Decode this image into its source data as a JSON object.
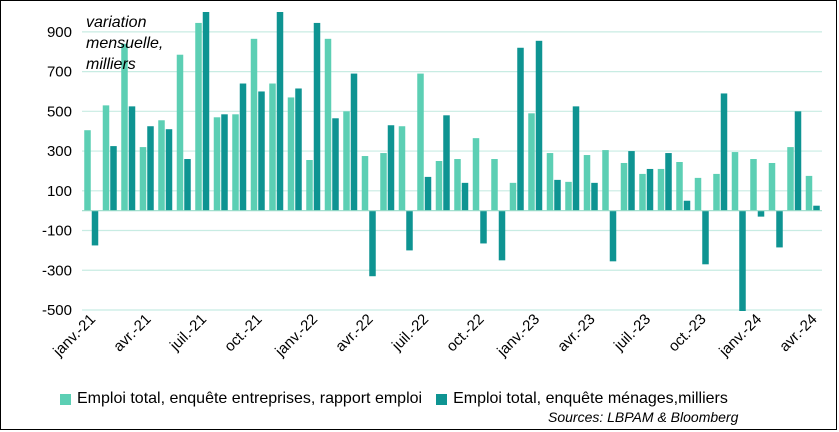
{
  "chart_data": {
    "type": "bar",
    "ylabel": "variation\nmensuelle,\nmilliers",
    "ylim": [
      -500,
      1000
    ],
    "yticks": [
      900,
      700,
      500,
      300,
      100,
      -100,
      -300,
      -500
    ],
    "ytick_labels": [
      "900",
      "700",
      "500",
      "300",
      "100",
      "-100",
      "-300",
      "-500"
    ],
    "grid": true,
    "legend_position": "bottom",
    "categories": [
      "2021-01",
      "2021-02",
      "2021-03",
      "2021-04",
      "2021-05",
      "2021-06",
      "2021-07",
      "2021-08",
      "2021-09",
      "2021-10",
      "2021-11",
      "2021-12",
      "2022-01",
      "2022-02",
      "2022-03",
      "2022-04",
      "2022-05",
      "2022-06",
      "2022-07",
      "2022-08",
      "2022-09",
      "2022-10",
      "2022-11",
      "2022-12",
      "2023-01",
      "2023-02",
      "2023-03",
      "2023-04",
      "2023-05",
      "2023-06",
      "2023-07",
      "2023-08",
      "2023-09",
      "2023-10",
      "2023-11",
      "2023-12",
      "2024-01",
      "2024-02",
      "2024-03",
      "2024-04"
    ],
    "xtick_labels": [
      {
        "index": 0,
        "label": "janv.-21"
      },
      {
        "index": 3,
        "label": "avr.-21"
      },
      {
        "index": 6,
        "label": "juil.-21"
      },
      {
        "index": 9,
        "label": "oct.-21"
      },
      {
        "index": 12,
        "label": "janv.-22"
      },
      {
        "index": 15,
        "label": "avr.-22"
      },
      {
        "index": 18,
        "label": "juil.-22"
      },
      {
        "index": 21,
        "label": "oct.-22"
      },
      {
        "index": 24,
        "label": "janv.-23"
      },
      {
        "index": 27,
        "label": "avr.-23"
      },
      {
        "index": 30,
        "label": "juil.-23"
      },
      {
        "index": 33,
        "label": "oct.-23"
      },
      {
        "index": 36,
        "label": "janv.-24"
      },
      {
        "index": 39,
        "label": "avr.-24"
      }
    ],
    "series": [
      {
        "name": "Emploi total, enquête entreprises, rapport emploi",
        "color": "#5ccfb4",
        "values": [
          405,
          530,
          840,
          320,
          455,
          785,
          945,
          470,
          485,
          865,
          640,
          570,
          255,
          865,
          500,
          275,
          290,
          425,
          690,
          250,
          260,
          365,
          260,
          140,
          490,
          290,
          145,
          280,
          305,
          240,
          185,
          210,
          245,
          165,
          185,
          295,
          260,
          240,
          320,
          175
        ]
      },
      {
        "name": "Emploi total, enquête ménages,milliers",
        "color": "#0e9492",
        "values": [
          -175,
          325,
          525,
          425,
          410,
          260,
          1000,
          485,
          640,
          600,
          1000,
          615,
          945,
          465,
          690,
          -330,
          430,
          -200,
          170,
          480,
          140,
          -165,
          -250,
          820,
          855,
          155,
          525,
          140,
          -255,
          300,
          210,
          290,
          50,
          -270,
          590,
          -505,
          -30,
          -185,
          500,
          25
        ]
      }
    ]
  },
  "source": "Sources: LBPAM & Bloomberg"
}
